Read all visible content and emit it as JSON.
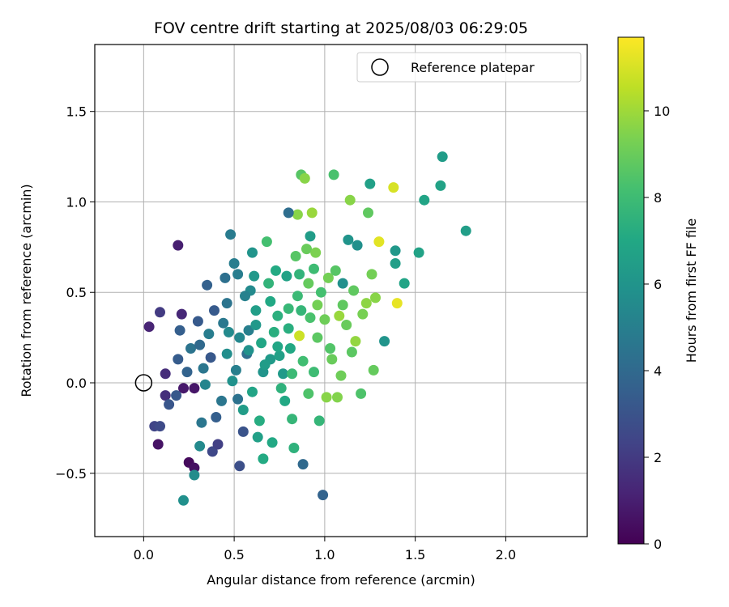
{
  "chart_data": {
    "type": "scatter",
    "title": "FOV centre drift starting at 2025/08/03 06:29:05",
    "xlabel": "Angular distance from reference (arcmin)",
    "ylabel": "Rotation from reference (arcmin)",
    "xlim": [
      -0.27,
      2.45
    ],
    "ylim": [
      -0.85,
      1.87
    ],
    "xticks": [
      0.0,
      0.5,
      1.0,
      1.5,
      2.0
    ],
    "xtick_labels": [
      "0.0",
      "0.5",
      "1.0",
      "1.5",
      "2.0"
    ],
    "yticks": [
      -0.5,
      0.0,
      0.5,
      1.0,
      1.5
    ],
    "ytick_labels": [
      "−0.5",
      "0.0",
      "0.5",
      "1.0",
      "1.5"
    ],
    "grid": true,
    "legend": {
      "position": "top-right",
      "entries": [
        "Reference platepar"
      ]
    },
    "reference_point": {
      "x": 0.0,
      "y": 0.0,
      "label": "Reference platepar"
    },
    "colorbar": {
      "label": "Hours from first FF file",
      "range": [
        0,
        11.7
      ],
      "ticks": [
        0,
        2,
        4,
        6,
        8,
        10
      ],
      "tick_labels": [
        "0",
        "2",
        "4",
        "6",
        "8",
        "10"
      ],
      "colormap": "viridis"
    },
    "points": [
      [
        0.03,
        0.31,
        1.2
      ],
      [
        0.19,
        0.76,
        1.0
      ],
      [
        0.08,
        -0.34,
        0.6
      ],
      [
        0.25,
        -0.44,
        0.3
      ],
      [
        0.28,
        -0.47,
        0.5
      ],
      [
        0.09,
        0.39,
        2.0
      ],
      [
        0.21,
        0.38,
        1.3
      ],
      [
        0.12,
        0.05,
        1.5
      ],
      [
        0.12,
        -0.07,
        1.6
      ],
      [
        0.22,
        -0.03,
        0.8
      ],
      [
        0.28,
        -0.03,
        0.7
      ],
      [
        0.06,
        -0.24,
        2.4
      ],
      [
        0.09,
        -0.24,
        2.6
      ],
      [
        0.14,
        -0.12,
        3.1
      ],
      [
        0.18,
        -0.07,
        3.2
      ],
      [
        0.19,
        0.13,
        3.4
      ],
      [
        0.2,
        0.29,
        3.5
      ],
      [
        0.24,
        0.06,
        3.7
      ],
      [
        0.26,
        0.19,
        4.5
      ],
      [
        0.3,
        0.34,
        3.3
      ],
      [
        0.31,
        0.21,
        4.0
      ],
      [
        0.33,
        0.08,
        4.6
      ],
      [
        0.35,
        0.54,
        3.6
      ],
      [
        0.37,
        0.14,
        3.2
      ],
      [
        0.39,
        0.4,
        3.3
      ],
      [
        0.4,
        -0.19,
        3.5
      ],
      [
        0.38,
        -0.38,
        2.5
      ],
      [
        0.41,
        -0.34,
        2.2
      ],
      [
        0.32,
        -0.22,
        4.6
      ],
      [
        0.31,
        -0.35,
        5.5
      ],
      [
        0.28,
        -0.51,
        5.6
      ],
      [
        0.22,
        -0.65,
        5.8
      ],
      [
        0.45,
        0.58,
        4.3
      ],
      [
        0.46,
        0.44,
        4.5
      ],
      [
        0.47,
        0.28,
        5.5
      ],
      [
        0.48,
        0.82,
        4.8
      ],
      [
        0.5,
        0.66,
        4.9
      ],
      [
        0.51,
        0.07,
        5.0
      ],
      [
        0.52,
        -0.09,
        4.4
      ],
      [
        0.53,
        -0.46,
        2.8
      ],
      [
        0.55,
        -0.27,
        3.0
      ],
      [
        0.57,
        0.16,
        4.2
      ],
      [
        0.58,
        0.29,
        5.0
      ],
      [
        0.59,
        0.51,
        5.5
      ],
      [
        0.6,
        0.72,
        6.0
      ],
      [
        0.61,
        0.59,
        6.2
      ],
      [
        0.62,
        0.4,
        6.5
      ],
      [
        0.63,
        -0.3,
        6.6
      ],
      [
        0.64,
        -0.21,
        7.2
      ],
      [
        0.66,
        0.06,
        6.0
      ],
      [
        0.66,
        -0.42,
        7.1
      ],
      [
        0.68,
        0.78,
        8.2
      ],
      [
        0.69,
        0.55,
        7.6
      ],
      [
        0.7,
        0.13,
        6.3
      ],
      [
        0.71,
        -0.33,
        7.0
      ],
      [
        0.73,
        0.62,
        7.1
      ],
      [
        0.74,
        0.37,
        7.4
      ],
      [
        0.75,
        0.15,
        6.6
      ],
      [
        0.77,
        0.05,
        6.3
      ],
      [
        0.78,
        -0.1,
        7.0
      ],
      [
        0.79,
        0.59,
        6.7
      ],
      [
        0.8,
        0.41,
        7.8
      ],
      [
        0.81,
        0.19,
        7.0
      ],
      [
        0.82,
        -0.2,
        7.7
      ],
      [
        0.83,
        -0.36,
        7.5
      ],
      [
        0.84,
        0.7,
        8.6
      ],
      [
        0.85,
        0.48,
        7.9
      ],
      [
        0.85,
        0.93,
        9.6
      ],
      [
        0.86,
        0.26,
        10.8
      ],
      [
        0.87,
        1.15,
        8.6
      ],
      [
        0.88,
        -0.45,
        4.0
      ],
      [
        0.89,
        1.13,
        9.6
      ],
      [
        0.9,
        0.74,
        9.0
      ],
      [
        0.91,
        0.55,
        8.9
      ],
      [
        0.92,
        0.36,
        8.3
      ],
      [
        0.93,
        0.94,
        9.9
      ],
      [
        0.94,
        0.06,
        8.0
      ],
      [
        0.95,
        0.72,
        9.4
      ],
      [
        0.96,
        0.43,
        9.2
      ],
      [
        0.97,
        -0.21,
        7.7
      ],
      [
        0.99,
        -0.62,
        3.7
      ],
      [
        1.0,
        0.35,
        9.1
      ],
      [
        1.01,
        -0.08,
        9.6
      ],
      [
        1.02,
        0.58,
        9.2
      ],
      [
        1.03,
        0.19,
        8.5
      ],
      [
        1.05,
        1.15,
        8.3
      ],
      [
        1.06,
        0.62,
        8.6
      ],
      [
        1.07,
        -0.08,
        9.5
      ],
      [
        1.08,
        0.37,
        9.9
      ],
      [
        1.09,
        0.04,
        9.1
      ],
      [
        1.1,
        0.55,
        5.8
      ],
      [
        1.12,
        0.32,
        9.0
      ],
      [
        1.13,
        0.79,
        6.0
      ],
      [
        1.14,
        1.01,
        9.6
      ],
      [
        1.15,
        0.17,
        8.7
      ],
      [
        1.16,
        0.51,
        8.8
      ],
      [
        1.17,
        0.23,
        9.8
      ],
      [
        1.18,
        0.76,
        5.8
      ],
      [
        1.2,
        -0.06,
        8.4
      ],
      [
        1.21,
        0.38,
        9.3
      ],
      [
        1.23,
        0.44,
        9.7
      ],
      [
        1.24,
        0.94,
        8.8
      ],
      [
        1.25,
        1.1,
        6.6
      ],
      [
        1.26,
        0.6,
        9.2
      ],
      [
        1.27,
        0.07,
        8.9
      ],
      [
        1.28,
        0.47,
        9.6
      ],
      [
        1.3,
        0.78,
        11.2
      ],
      [
        1.33,
        0.23,
        6.0
      ],
      [
        1.38,
        1.08,
        11.0
      ],
      [
        1.39,
        0.73,
        6.2
      ],
      [
        1.39,
        0.66,
        6.5
      ],
      [
        1.4,
        0.44,
        11.3
      ],
      [
        1.44,
        0.55,
        6.8
      ],
      [
        1.52,
        0.72,
        6.7
      ],
      [
        1.55,
        1.01,
        6.8
      ],
      [
        1.64,
        1.09,
        6.7
      ],
      [
        1.65,
        1.25,
        6.4
      ],
      [
        1.78,
        0.84,
        6.5
      ],
      [
        0.92,
        0.81,
        6.4
      ],
      [
        0.8,
        0.94,
        4.2
      ],
      [
        0.52,
        0.6,
        4.9
      ],
      [
        0.56,
        0.48,
        5.1
      ],
      [
        0.43,
        -0.1,
        4.6
      ],
      [
        0.36,
        0.27,
        4.9
      ],
      [
        0.34,
        -0.01,
        5.3
      ],
      [
        0.46,
        0.16,
        5.7
      ],
      [
        0.49,
        0.01,
        5.9
      ],
      [
        0.55,
        -0.15,
        6.4
      ],
      [
        0.6,
        -0.05,
        6.8
      ],
      [
        0.65,
        0.22,
        6.9
      ],
      [
        0.72,
        0.28,
        7.3
      ],
      [
        0.76,
        -0.03,
        7.5
      ],
      [
        0.82,
        0.05,
        7.9
      ],
      [
        0.88,
        0.12,
        8.1
      ],
      [
        0.91,
        -0.06,
        8.4
      ],
      [
        0.96,
        0.25,
        8.7
      ],
      [
        1.04,
        0.13,
        9.0
      ],
      [
        0.98,
        0.5,
        8.2
      ],
      [
        0.87,
        0.4,
        7.7
      ],
      [
        0.7,
        0.45,
        7.0
      ],
      [
        0.62,
        0.32,
        6.2
      ],
      [
        0.53,
        0.25,
        5.4
      ],
      [
        0.44,
        0.33,
        4.7
      ],
      [
        0.58,
        0.18,
        5.9
      ],
      [
        0.67,
        0.1,
        6.4
      ],
      [
        0.74,
        0.2,
        6.9
      ],
      [
        0.8,
        0.3,
        7.3
      ],
      [
        0.86,
        0.6,
        7.6
      ],
      [
        0.94,
        0.63,
        8.0
      ],
      [
        1.1,
        0.43,
        8.8
      ]
    ]
  }
}
